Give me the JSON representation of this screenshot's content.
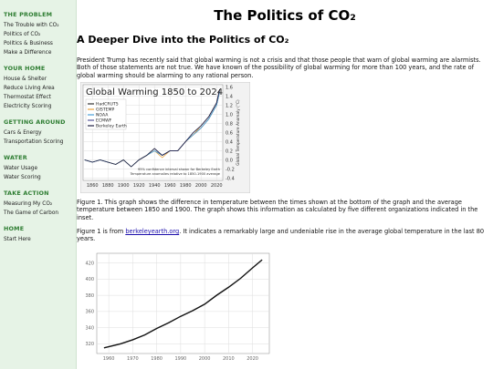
{
  "sidebar": [
    {
      "title": "THE PROBLEM",
      "items": [
        "The Trouble with CO₂",
        "Politics of CO₂",
        "Politics & Business",
        "Make a Difference"
      ]
    },
    {
      "title": "YOUR HOME",
      "items": [
        "House & Shelter",
        "Reduce Living Area",
        "Thermostat Effect",
        "Electricity Scoring"
      ]
    },
    {
      "title": "GETTING AROUND",
      "items": [
        "Cars & Energy",
        "Transportation Scoring"
      ]
    },
    {
      "title": "WATER",
      "items": [
        "Water Usage",
        "Water Scoring"
      ]
    },
    {
      "title": "TAKE ACTION",
      "items": [
        "Measuring My CO₂",
        "The Game of Carbon"
      ]
    },
    {
      "title": "HOME",
      "items": [
        "Start Here"
      ]
    }
  ],
  "main": {
    "title": "The Politics of CO₂",
    "heading": "A Deeper Dive into the Politics of CO₂",
    "paragraph1": "President Trump has recently said that global warming is not a crisis and that those people that warn of global warming are alarmists. Both of those statements are not true. We have known of the possibility of global warming for more than 100 years, and the rate of global warming should be alarming to any rational person.",
    "caption": "Figure 1. This graph shows the difference in temperature between the times shown at the bottom of the graph and the average temperature between 1850 and 1900. The graph shows this information as calculated by five different organizations indicated in the inset.",
    "paragraph3": {
      "before": "Figure 1 is from ",
      "link": "berkeleyearth.org",
      "after": ". It indicates a remarkably large and undeniable rise in the average global temperature in the last 80 years."
    }
  },
  "chart_data": [
    {
      "type": "line",
      "title": "Global Warming 1850 to 2024",
      "y_label": "Global Temperature Anomaly (°C)",
      "annotations": [
        "95% confidence interval shown for Berkeley Earth",
        "Temperature anomalies relative to 1850-1900 average"
      ],
      "x": [
        1850,
        1860,
        1870,
        1880,
        1890,
        1900,
        1910,
        1920,
        1930,
        1940,
        1950,
        1960,
        1970,
        1980,
        1990,
        2000,
        2010,
        2020,
        2024
      ],
      "series": [
        {
          "name": "HadCRUT5",
          "color": "#333333",
          "values": [
            0.0,
            -0.05,
            0.0,
            -0.05,
            -0.1,
            0.0,
            -0.15,
            0.0,
            0.1,
            0.25,
            0.1,
            0.2,
            0.2,
            0.4,
            0.55,
            0.7,
            0.9,
            1.2,
            1.5
          ]
        },
        {
          "name": "GISTEMP",
          "color": "#e8a33d",
          "values": [
            null,
            null,
            null,
            -0.05,
            -0.1,
            0.0,
            -0.15,
            0.0,
            0.1,
            0.2,
            0.05,
            0.2,
            0.2,
            0.4,
            0.55,
            0.75,
            0.95,
            1.25,
            1.55
          ]
        },
        {
          "name": "NOAA",
          "color": "#4aa0d8",
          "values": [
            0.0,
            -0.05,
            0.0,
            -0.05,
            -0.1,
            0.0,
            -0.15,
            0.0,
            0.1,
            0.2,
            0.1,
            0.2,
            0.2,
            0.4,
            0.55,
            0.7,
            0.9,
            1.2,
            1.5
          ]
        },
        {
          "name": "ECMWF",
          "color": "#555599",
          "values": [
            null,
            null,
            null,
            null,
            null,
            null,
            null,
            null,
            null,
            0.25,
            0.1,
            0.2,
            0.2,
            0.4,
            0.6,
            0.75,
            0.95,
            1.25,
            1.55
          ]
        },
        {
          "name": "Berkeley Earth",
          "color": "#222244",
          "values": [
            0.0,
            -0.05,
            0.0,
            -0.05,
            -0.1,
            0.0,
            -0.15,
            0.0,
            0.1,
            0.25,
            0.1,
            0.2,
            0.2,
            0.4,
            0.6,
            0.75,
            0.95,
            1.25,
            1.55
          ]
        }
      ],
      "xlim": [
        1848,
        2028
      ],
      "ylim": [
        -0.45,
        1.65
      ],
      "xticks": [
        1860,
        1880,
        1900,
        1920,
        1940,
        1960,
        1980,
        2000,
        2020
      ],
      "yticks": [
        -0.4,
        -0.2,
        {
          "value": 0,
          "label": "0.0"
        },
        0.2,
        0.4,
        0.6,
        0.8,
        {
          "value": 1,
          "label": "1.0"
        },
        1.2,
        1.4,
        1.6
      ],
      "y_axis_side": "right",
      "grid": true,
      "legend": "upper-left"
    },
    {
      "type": "line",
      "x": [
        1958,
        1965,
        1970,
        1975,
        1980,
        1985,
        1990,
        1995,
        2000,
        2005,
        2010,
        2015,
        2020,
        2024
      ],
      "series": [
        {
          "name": "CO₂",
          "color": "#111111",
          "values": [
            315,
            320,
            325,
            331,
            339,
            346,
            354,
            361,
            369,
            380,
            390,
            401,
            414,
            424
          ]
        }
      ],
      "xlim": [
        1955,
        2027
      ],
      "ylim": [
        308,
        432
      ],
      "xticks": [
        1960,
        1970,
        1980,
        1990,
        2000,
        2010,
        2020
      ],
      "yticks": [
        320,
        340,
        360,
        380,
        400,
        420
      ],
      "y_axis_side": "left",
      "grid": true
    }
  ]
}
